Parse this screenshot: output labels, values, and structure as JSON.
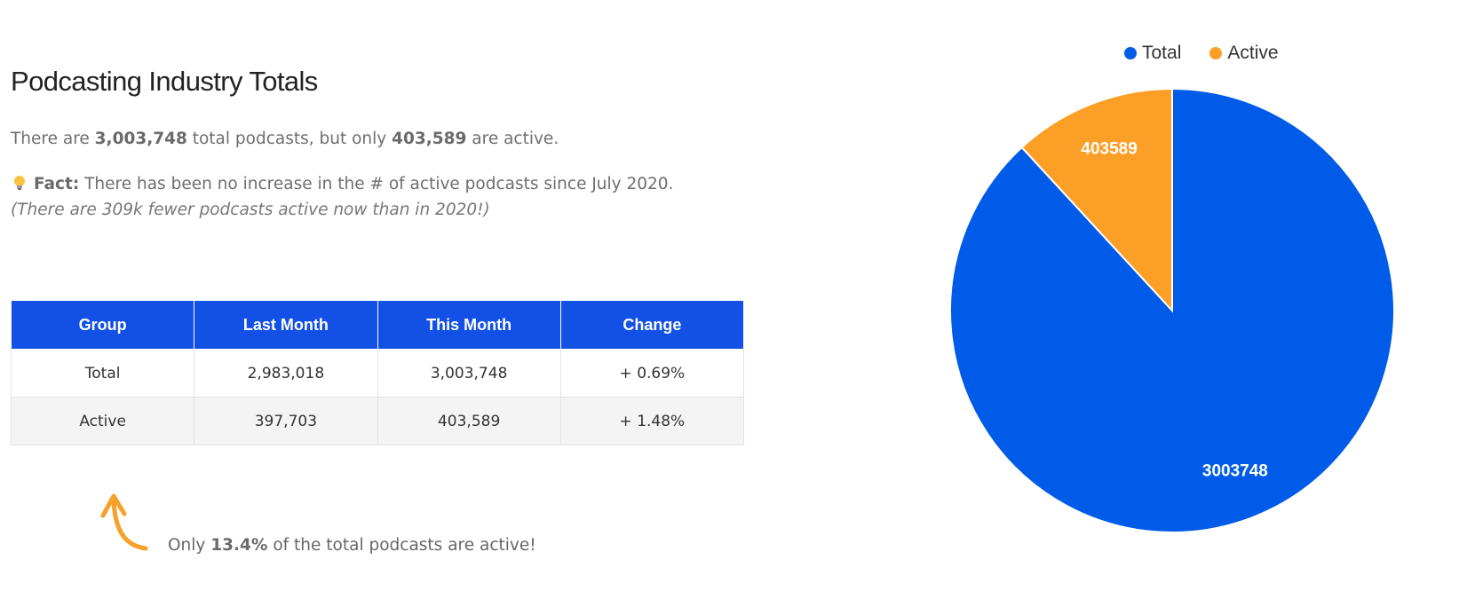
{
  "heading": "Podcasting Industry Totals",
  "summary": {
    "pre": "There are ",
    "total": "3,003,748",
    "mid": " total podcasts, but only ",
    "active": "403,589",
    "post": " are active."
  },
  "fact": {
    "label": "Fact:",
    "text": " There has been no increase in the # of active podcasts since July 2020. ",
    "italic": "(There are 309k fewer podcasts active now than in 2020!)"
  },
  "table": {
    "headers": [
      "Group",
      "Last Month",
      "This Month",
      "Change"
    ],
    "rows": [
      [
        "Total",
        "2,983,018",
        "3,003,748",
        "+ 0.69%"
      ],
      [
        "Active",
        "397,703",
        "403,589",
        "+ 1.48%"
      ]
    ]
  },
  "note": {
    "pre": "Only ",
    "percent": "13.4%",
    "post": " of the total podcasts are active!"
  },
  "colors": {
    "header_bg": "#1351e6",
    "arrow": "#f7a02a"
  },
  "chart_data": {
    "type": "pie",
    "categories": [
      "Total",
      "Active"
    ],
    "values": [
      3003748,
      403589
    ],
    "colors": [
      "#005ce8",
      "#fc9f27"
    ],
    "labels": [
      "3003748",
      "403589"
    ],
    "legend": "top"
  }
}
